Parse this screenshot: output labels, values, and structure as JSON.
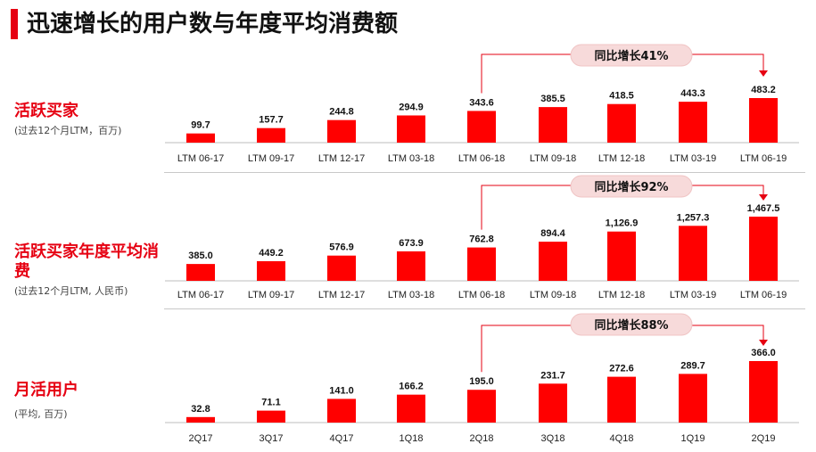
{
  "page": {
    "title": "迅速增长的用户数与年度平均消费额"
  },
  "panels": [
    {
      "label": "活跃买家",
      "sublabel": "(过去12个月LTM，百万)"
    },
    {
      "label": "活跃买家年度平均消费",
      "sublabel": "(过去12个月LTM, 人民币)"
    },
    {
      "label": "月活用户",
      "sublabel": "(平均, 百万)"
    }
  ],
  "chart_data": [
    {
      "type": "bar",
      "title": "活跃买家",
      "categories": [
        "LTM 06-17",
        "LTM 09-17",
        "LTM 12-17",
        "LTM 03-18",
        "LTM 06-18",
        "LTM 09-18",
        "LTM 12-18",
        "LTM 03-19",
        "LTM 06-19"
      ],
      "values": [
        99.7,
        157.7,
        244.8,
        294.9,
        343.6,
        385.5,
        418.5,
        443.3,
        483.2
      ],
      "value_labels": [
        "99.7",
        "157.7",
        "244.8",
        "294.9",
        "343.6",
        "385.5",
        "418.5",
        "443.3",
        "483.2"
      ],
      "annotation": {
        "text": "同比增长41%",
        "from_index": 4,
        "to_index": 8
      },
      "color": "#ff0000"
    },
    {
      "type": "bar",
      "title": "活跃买家年度平均消费",
      "categories": [
        "LTM 06-17",
        "LTM 09-17",
        "LTM 12-17",
        "LTM 03-18",
        "LTM 06-18",
        "LTM 09-18",
        "LTM 12-18",
        "LTM 03-19",
        "LTM 06-19"
      ],
      "values": [
        385.0,
        449.2,
        576.9,
        673.9,
        762.8,
        894.4,
        1126.9,
        1257.3,
        1467.5
      ],
      "value_labels": [
        "385.0",
        "449.2",
        "576.9",
        "673.9",
        "762.8",
        "894.4",
        "1,126.9",
        "1,257.3",
        "1,467.5"
      ],
      "annotation": {
        "text": "同比增长92%",
        "from_index": 4,
        "to_index": 8
      },
      "color": "#ff0000"
    },
    {
      "type": "bar",
      "title": "月活用户",
      "categories": [
        "2Q17",
        "3Q17",
        "4Q17",
        "1Q18",
        "2Q18",
        "3Q18",
        "4Q18",
        "1Q19",
        "2Q19"
      ],
      "values": [
        32.8,
        71.1,
        141.0,
        166.2,
        195.0,
        231.7,
        272.6,
        289.7,
        366.0
      ],
      "value_labels": [
        "32.8",
        "71.1",
        "141.0",
        "166.2",
        "195.0",
        "231.7",
        "272.6",
        "289.7",
        "366.0"
      ],
      "annotation": {
        "text": "同比增长88%",
        "from_index": 4,
        "to_index": 8
      },
      "color": "#ff0000"
    }
  ]
}
